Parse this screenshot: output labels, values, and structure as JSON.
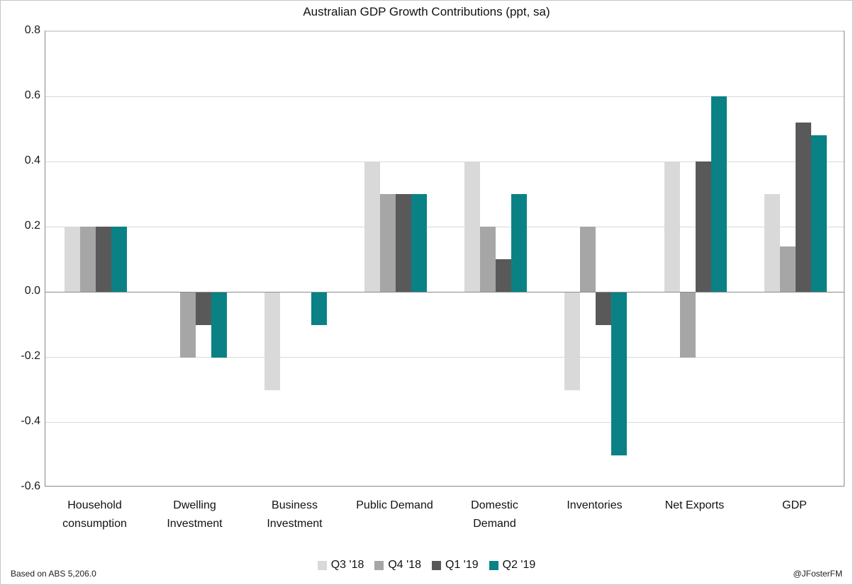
{
  "footer": {
    "left": "Based on ABS 5,206.0",
    "right": "@JFosterFM"
  },
  "chart_data": {
    "type": "bar",
    "title": "Australian GDP Growth Contributions (ppt, sa)",
    "categories": [
      "Household consumption",
      "Dwelling Investment",
      "Business Investment",
      "Public Demand",
      "Domestic Demand",
      "Inventories",
      "Net Exports",
      "GDP"
    ],
    "category_label_lines": [
      [
        "Household",
        "consumption"
      ],
      [
        "Dwelling",
        "Investment"
      ],
      [
        "Business",
        "Investment"
      ],
      [
        "Public Demand"
      ],
      [
        "Domestic",
        "Demand"
      ],
      [
        "Inventories"
      ],
      [
        "Net Exports"
      ],
      [
        "GDP"
      ]
    ],
    "series": [
      {
        "name": "Q3 '18",
        "color": "#d9d9d9",
        "values": [
          0.2,
          0.0,
          -0.3,
          0.4,
          0.4,
          -0.3,
          0.4,
          0.3
        ]
      },
      {
        "name": "Q4 '18",
        "color": "#a6a6a6",
        "values": [
          0.2,
          -0.2,
          0.0,
          0.3,
          0.2,
          0.2,
          -0.2,
          0.14
        ]
      },
      {
        "name": "Q1 '19",
        "color": "#595959",
        "values": [
          0.2,
          -0.1,
          0.0,
          0.3,
          0.1,
          -0.1,
          0.4,
          0.52
        ]
      },
      {
        "name": "Q2 '19",
        "color": "#0a8285",
        "values": [
          0.2,
          -0.2,
          -0.1,
          0.3,
          0.3,
          -0.5,
          0.6,
          0.48
        ]
      }
    ],
    "xlabel": "",
    "ylabel": "",
    "ylim": [
      -0.6,
      0.8
    ],
    "ytick_step": 0.2,
    "ytick_labels": [
      "0.8",
      "0.6",
      "0.4",
      "0.2",
      "0.0",
      "-0.2",
      "-0.4",
      "-0.6"
    ],
    "grid": true,
    "legend_position": "bottom"
  }
}
